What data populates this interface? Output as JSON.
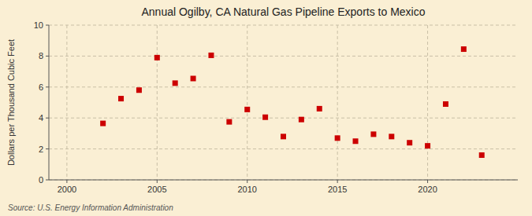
{
  "chart_data": {
    "type": "scatter",
    "title": "Annual Ogilby, CA Natural Gas Pipeline Exports to Mexico",
    "y_label": "Dollars per Thousand Cubic Feet",
    "annotations": [
      "Source: U.S. Energy Information Administration"
    ],
    "x": [
      2002,
      2003,
      2004,
      2005,
      2006,
      2007,
      2008,
      2009,
      2010,
      2011,
      2012,
      2013,
      2014,
      2015,
      2016,
      2017,
      2018,
      2019,
      2020,
      2021,
      2022,
      2023
    ],
    "values": [
      3.65,
      5.25,
      5.8,
      7.9,
      6.25,
      6.55,
      8.05,
      3.75,
      4.55,
      4.05,
      2.8,
      3.9,
      4.6,
      2.7,
      2.5,
      2.95,
      2.8,
      2.4,
      2.2,
      4.9,
      8.45,
      1.6
    ],
    "color": "#cc0000",
    "marker": "square",
    "xlim": [
      1999,
      2025
    ],
    "ylim": [
      0,
      10
    ],
    "xticks": [
      2000,
      2005,
      2010,
      2015,
      2020
    ],
    "yticks": [
      0,
      2,
      4,
      6,
      8,
      10
    ],
    "grid": true
  }
}
